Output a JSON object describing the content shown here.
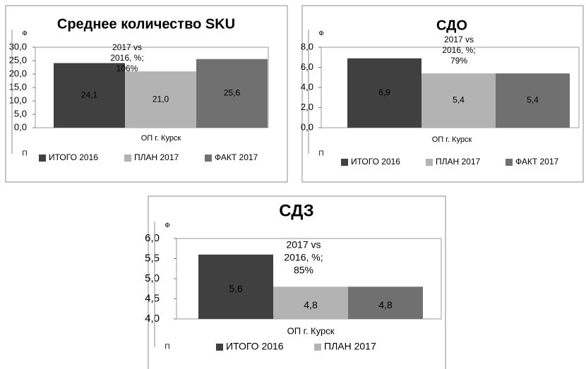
{
  "chart_data": [
    {
      "type": "bar",
      "title": "Среднее количество SKU",
      "categories": [
        "ОП г. Курск"
      ],
      "series": [
        {
          "name": "ИТОГО 2016",
          "color": "#404040",
          "values": [
            24.1
          ],
          "value_labels": [
            "24,1"
          ]
        },
        {
          "name": "ПЛАН 2017",
          "color": "#b3b3b3",
          "values": [
            21.0
          ],
          "value_labels": [
            "21,0"
          ]
        },
        {
          "name": "ФАКТ 2017",
          "color": "#707070",
          "values": [
            25.6
          ],
          "value_labels": [
            "25,6"
          ]
        }
      ],
      "ylim": [
        0,
        30
      ],
      "yticks": [
        {
          "value": 0,
          "label": "0,0"
        },
        {
          "value": 5,
          "label": "5,0"
        },
        {
          "value": 10,
          "label": "10,0"
        },
        {
          "value": 15,
          "label": "15,0"
        },
        {
          "value": 20,
          "label": "20,0"
        },
        {
          "value": 25,
          "label": "25,0"
        },
        {
          "value": 30,
          "label": "30,0"
        }
      ],
      "annotation": [
        "2017 vs",
        "2016, %;",
        "106%"
      ],
      "axis_top_label": "Ф",
      "axis_bottom_label": "П"
    },
    {
      "type": "bar",
      "title": "СДО",
      "categories": [
        "ОП г. Курск"
      ],
      "series": [
        {
          "name": "ИТОГО 2016",
          "color": "#404040",
          "values": [
            6.9
          ],
          "value_labels": [
            "6,9"
          ]
        },
        {
          "name": "ПЛАН 2017",
          "color": "#b3b3b3",
          "values": [
            5.4
          ],
          "value_labels": [
            "5,4"
          ]
        },
        {
          "name": "ФАКТ 2017",
          "color": "#707070",
          "values": [
            5.4
          ],
          "value_labels": [
            "5,4"
          ]
        }
      ],
      "ylim": [
        0,
        8
      ],
      "yticks": [
        {
          "value": 0,
          "label": "0,0"
        },
        {
          "value": 2,
          "label": "2,0"
        },
        {
          "value": 4,
          "label": "4,0"
        },
        {
          "value": 6,
          "label": "6,0"
        },
        {
          "value": 8,
          "label": "8,0"
        }
      ],
      "annotation": [
        "2017 vs",
        "2016, %;",
        "79%"
      ],
      "axis_top_label": "Ф",
      "axis_bottom_label": "П"
    },
    {
      "type": "bar",
      "title": "СДЗ",
      "categories": [
        "ОП г. Курск"
      ],
      "series": [
        {
          "name": "ИТОГО 2016",
          "color": "#404040",
          "values": [
            5.6
          ],
          "value_labels": [
            "5,6"
          ]
        },
        {
          "name": "ПЛАН 2017",
          "color": "#b3b3b3",
          "values": [
            4.8
          ],
          "value_labels": [
            "4,8"
          ]
        },
        {
          "color": "#707070",
          "values": [
            4.8
          ],
          "value_labels": [
            "4,8"
          ]
        }
      ],
      "ylim": [
        4,
        6
      ],
      "yticks": [
        {
          "value": 4,
          "label": "4,0"
        },
        {
          "value": 4.5,
          "label": "4,5"
        },
        {
          "value": 5,
          "label": "5,0"
        },
        {
          "value": 5.5,
          "label": "5,5"
        },
        {
          "value": 6,
          "label": "6,0"
        }
      ],
      "annotation": [
        "2017 vs",
        "2016, %;",
        "85%"
      ],
      "axis_top_label": "Ф",
      "axis_bottom_label": "П"
    }
  ]
}
